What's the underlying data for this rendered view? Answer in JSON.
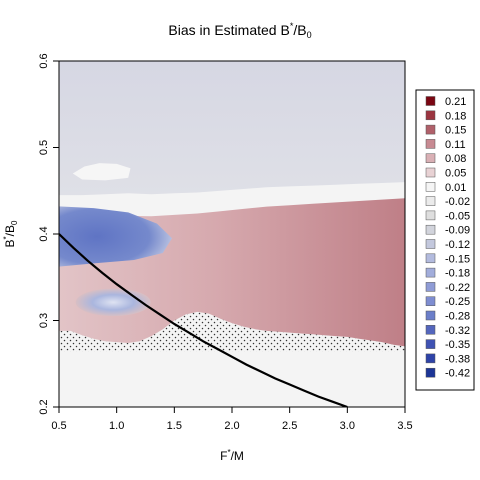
{
  "chart_data": {
    "type": "heatmap",
    "title_main": "Bias in Estimated B",
    "title_sup": "*",
    "title_mid": "/B",
    "title_sub": "0",
    "xlabel_main": "F",
    "xlabel_sup": "*",
    "xlabel_tail": "/M",
    "ylabel_main": "B",
    "ylabel_sup": "*",
    "ylabel_mid": "/B",
    "ylabel_sub": "0",
    "xlim": [
      0.5,
      3.5
    ],
    "ylim": [
      0.2,
      0.6
    ],
    "x_ticks": [
      "0.5",
      "1.0",
      "1.5",
      "2.0",
      "2.5",
      "3.0",
      "3.5"
    ],
    "y_ticks": [
      "0.2",
      "0.3",
      "0.4",
      "0.5",
      "0.6"
    ],
    "curve": {
      "x": [
        0.5,
        0.625,
        0.75,
        0.875,
        1.0,
        1.125,
        1.25,
        1.375,
        1.5,
        1.625,
        1.75,
        1.875,
        2.0,
        2.125,
        2.25,
        2.375,
        2.5,
        2.625,
        2.75,
        2.875,
        3.0
      ],
      "y": [
        0.4,
        0.384,
        0.369,
        0.355,
        0.342,
        0.33,
        0.318,
        0.307,
        0.296,
        0.286,
        0.276,
        0.267,
        0.258,
        0.249,
        0.241,
        0.233,
        0.226,
        0.219,
        0.212,
        0.206,
        0.2
      ],
      "color": "#000000"
    },
    "top_band": {
      "x": [
        0.5,
        0.7,
        0.9,
        1.1,
        1.3,
        1.5,
        1.7,
        1.9,
        2.1,
        2.3,
        2.5,
        2.7,
        2.9,
        3.1,
        3.3,
        3.5
      ],
      "y": [
        0.445,
        0.445,
        0.446,
        0.447,
        0.446,
        0.447,
        0.448,
        0.45,
        0.452,
        0.454,
        0.455,
        0.456,
        0.457,
        0.458,
        0.459,
        0.46
      ]
    },
    "bottom_edge": {
      "x": [
        0.5,
        0.6,
        0.7,
        0.8,
        0.9,
        1.0,
        1.1,
        1.2,
        1.3,
        1.4,
        1.5,
        1.6,
        1.7,
        1.8,
        1.9,
        2.0,
        2.1,
        2.2,
        2.3,
        2.4,
        2.5,
        2.6,
        2.7,
        2.8,
        2.9,
        3.0,
        3.1,
        3.2,
        3.3,
        3.4,
        3.5
      ],
      "y": [
        0.288,
        0.288,
        0.283,
        0.279,
        0.276,
        0.275,
        0.274,
        0.276,
        0.282,
        0.29,
        0.3,
        0.307,
        0.31,
        0.308,
        0.302,
        0.297,
        0.293,
        0.29,
        0.288,
        0.287,
        0.286,
        0.285,
        0.284,
        0.283,
        0.282,
        0.281,
        0.279,
        0.277,
        0.275,
        0.272,
        0.27
      ]
    },
    "dotted_floor": 0.264,
    "colors": {
      "top_gray": "#dcdde6",
      "upper_gray": "#eaebec",
      "neutral": "#f4f4f4",
      "light_red": "#ddb8bc",
      "mid_red": "#c98e94",
      "deep_red": "#b86f78",
      "blue": "#6b7fc8",
      "light_blue": "#aab6de",
      "dot": "#333333"
    },
    "legend": {
      "labels": [
        "0.21",
        "0.18",
        "0.15",
        "0.11",
        "0.08",
        "0.05",
        "0.01",
        "-0.02",
        "-0.05",
        "-0.09",
        "-0.12",
        "-0.15",
        "-0.18",
        "-0.22",
        "-0.25",
        "-0.28",
        "-0.32",
        "-0.35",
        "-0.38",
        "-0.42"
      ],
      "colors": [
        "#7a0612",
        "#9b3540",
        "#b0606a",
        "#c78a92",
        "#d9b0b5",
        "#e8d2d4",
        "#f5f5f5",
        "#ebebeb",
        "#dedede",
        "#d2d4dc",
        "#c3c8dd",
        "#b3bbde",
        "#a2addb",
        "#8f9cd6",
        "#7e8dd1",
        "#6b7ec9",
        "#5466bd",
        "#3f52b3",
        "#2e43a8",
        "#1c3596"
      ]
    }
  }
}
